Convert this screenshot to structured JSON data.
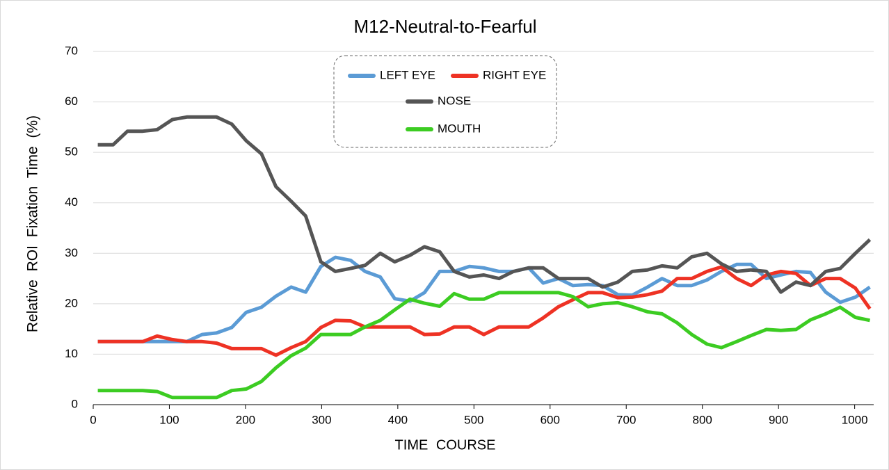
{
  "chart_data": {
    "type": "line",
    "title": "M12-Neutral-to-Fearful",
    "x_label": "TIME COURSE",
    "y_label": "Relative ROI Fixation Time (%)",
    "x": [
      6,
      26,
      45,
      65,
      84,
      104,
      123,
      143,
      162,
      182,
      201,
      221,
      240,
      260,
      279,
      299,
      318,
      338,
      357,
      377,
      396,
      416,
      435,
      455,
      474,
      494,
      513,
      533,
      552,
      572,
      591,
      611,
      630,
      650,
      669,
      689,
      708,
      728,
      747,
      767,
      786,
      806,
      825,
      845,
      864,
      884,
      903,
      923,
      942,
      962,
      981,
      1001,
      1020
    ],
    "series": [
      {
        "name": "LEFT EYE",
        "color": "#5b9bd5",
        "values": [
          12.5,
          12.5,
          12.5,
          12.5,
          12.5,
          12.5,
          12.5,
          13.9,
          14.2,
          15.3,
          18.3,
          19.3,
          21.5,
          23.3,
          22.3,
          27.4,
          29.2,
          28.6,
          26.4,
          25.3,
          21,
          20.5,
          22.2,
          26.4,
          26.4,
          27.4,
          27.1,
          26.4,
          26.4,
          27.1,
          24.1,
          25,
          23.6,
          23.8,
          23.6,
          21.8,
          21.7,
          23.3,
          25,
          23.6,
          23.6,
          24.7,
          26.4,
          27.8,
          27.8,
          25,
          25.7,
          26.4,
          26.2,
          22.3,
          20.3,
          21.3,
          23.3
        ]
      },
      {
        "name": "RIGHT EYE",
        "color": "#ee3224",
        "values": [
          12.5,
          12.5,
          12.5,
          12.5,
          13.6,
          12.9,
          12.5,
          12.5,
          12.2,
          11.1,
          11.1,
          11.1,
          9.8,
          11.3,
          12.5,
          15.3,
          16.7,
          16.6,
          15.4,
          15.4,
          15.4,
          15.4,
          13.9,
          14,
          15.4,
          15.4,
          13.9,
          15.4,
          15.4,
          15.4,
          17.2,
          19.4,
          20.8,
          22.2,
          22.2,
          21.2,
          21.3,
          21.8,
          22.5,
          25,
          25,
          26.4,
          27.3,
          25,
          23.6,
          25.7,
          26.4,
          26,
          23.6,
          25,
          25,
          23.1,
          19
        ]
      },
      {
        "name": "NOSE",
        "color": "#555555",
        "values": [
          51.5,
          51.5,
          54.2,
          54.2,
          54.5,
          56.5,
          57,
          57,
          57,
          55.6,
          52.3,
          49.7,
          43.2,
          40.3,
          37.4,
          28.3,
          26.4,
          27,
          27.6,
          30,
          28.3,
          29.6,
          31.3,
          30.3,
          26.4,
          25.3,
          25.7,
          25,
          26.4,
          27.1,
          27.1,
          25,
          25,
          25,
          23.3,
          24.3,
          26.4,
          26.7,
          27.5,
          27.1,
          29.3,
          30,
          27.9,
          26.4,
          26.7,
          26.4,
          22.3,
          24.3,
          23.6,
          26.4,
          27,
          30,
          32.7
        ]
      },
      {
        "name": "MOUTH",
        "color": "#3ccc22",
        "values": [
          2.8,
          2.8,
          2.8,
          2.8,
          2.6,
          1.4,
          1.4,
          1.4,
          1.4,
          2.8,
          3.1,
          4.6,
          7.3,
          9.7,
          11.2,
          13.9,
          13.9,
          13.9,
          15.4,
          16.7,
          18.8,
          20.9,
          20.1,
          19.5,
          22,
          20.9,
          20.9,
          22.2,
          22.2,
          22.2,
          22.2,
          22.2,
          21.4,
          19.4,
          20,
          20.2,
          19.4,
          18.4,
          18,
          16.2,
          13.9,
          12,
          11.3,
          12.5,
          13.7,
          14.9,
          14.7,
          14.9,
          16.8,
          18,
          19.3,
          17.3,
          16.7
        ]
      }
    ],
    "xlim": [
      0,
      1025
    ],
    "xticks": [
      0,
      100,
      200,
      300,
      400,
      500,
      600,
      700,
      800,
      900,
      1000
    ],
    "ylim": [
      0,
      70
    ],
    "yticks": [
      0,
      10,
      20,
      30,
      40,
      50,
      60,
      70
    ],
    "grid": true
  }
}
